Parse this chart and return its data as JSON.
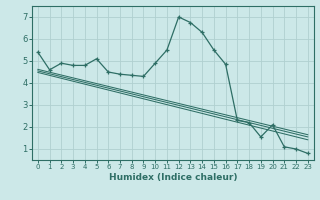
{
  "xlabel": "Humidex (Indice chaleur)",
  "bg_color": "#cce8e8",
  "line_color": "#2e6e65",
  "grid_color": "#b0d0d0",
  "xlim": [
    -0.5,
    23.5
  ],
  "ylim": [
    0.5,
    7.5
  ],
  "xticks": [
    0,
    1,
    2,
    3,
    4,
    5,
    6,
    7,
    8,
    9,
    10,
    11,
    12,
    13,
    14,
    15,
    16,
    17,
    18,
    19,
    20,
    21,
    22,
    23
  ],
  "yticks": [
    1,
    2,
    3,
    4,
    5,
    6,
    7
  ],
  "series": [
    [
      0,
      5.4
    ],
    [
      1,
      4.6
    ],
    [
      2,
      4.9
    ],
    [
      3,
      4.8
    ],
    [
      4,
      4.8
    ],
    [
      5,
      5.1
    ],
    [
      6,
      4.5
    ],
    [
      7,
      4.4
    ],
    [
      8,
      4.35
    ],
    [
      9,
      4.3
    ],
    [
      10,
      4.9
    ],
    [
      11,
      5.5
    ],
    [
      12,
      7.0
    ],
    [
      13,
      6.75
    ],
    [
      14,
      6.3
    ],
    [
      15,
      5.5
    ],
    [
      16,
      4.85
    ],
    [
      17,
      2.3
    ],
    [
      18,
      2.2
    ],
    [
      19,
      1.55
    ],
    [
      20,
      2.1
    ],
    [
      21,
      1.1
    ],
    [
      22,
      1.0
    ],
    [
      23,
      0.8
    ]
  ],
  "regression_lines": [
    {
      "x_start": 0,
      "y_start": 4.62,
      "x_end": 23,
      "y_end": 1.65
    },
    {
      "x_start": 0,
      "y_start": 4.55,
      "x_end": 23,
      "y_end": 1.55
    },
    {
      "x_start": 0,
      "y_start": 4.48,
      "x_end": 23,
      "y_end": 1.42
    }
  ]
}
